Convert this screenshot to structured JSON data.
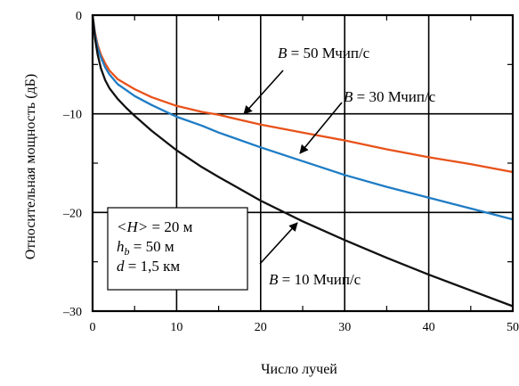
{
  "chart_data": {
    "type": "line",
    "xlabel": "Число лучей",
    "ylabel": "Относительная мощность (дБ)",
    "xlim": [
      0,
      50
    ],
    "ylim": [
      -30,
      0
    ],
    "x_ticks": [
      0,
      10,
      20,
      30,
      40,
      50
    ],
    "y_ticks": [
      0,
      -10,
      -20,
      -30
    ],
    "x_tick_labels": [
      "0",
      "10",
      "20",
      "30",
      "40",
      "50"
    ],
    "y_tick_labels": [
      "0",
      "–10",
      "–20",
      "–30"
    ],
    "grid": true,
    "series": [
      {
        "label_prefix": "B",
        "label_suffix": " = 50  Мчип/с",
        "color": "#e8521a",
        "x": [
          0,
          0.3,
          0.6,
          1,
          1.5,
          2,
          3,
          4,
          5,
          7,
          10,
          13,
          15,
          20,
          25,
          30,
          35,
          40,
          45,
          50
        ],
        "y": [
          0,
          -1.8,
          -3.0,
          -4.0,
          -4.9,
          -5.6,
          -6.5,
          -7.0,
          -7.5,
          -8.3,
          -9.2,
          -9.8,
          -10.1,
          -11.1,
          -11.9,
          -12.7,
          -13.6,
          -14.4,
          -15.1,
          -15.9
        ]
      },
      {
        "label_prefix": "B",
        "label_suffix": " = 30  Мчип/с",
        "color": "#1f7cc4",
        "x": [
          0,
          0.3,
          0.6,
          1,
          1.5,
          2,
          3,
          4,
          5,
          7,
          10,
          13,
          15,
          20,
          25,
          30,
          35,
          40,
          45,
          50
        ],
        "y": [
          0,
          -2.0,
          -3.3,
          -4.3,
          -5.3,
          -6.0,
          -7.0,
          -7.6,
          -8.2,
          -9.1,
          -10.3,
          -11.2,
          -11.9,
          -13.4,
          -14.8,
          -16.2,
          -17.4,
          -18.5,
          -19.6,
          -20.7
        ]
      },
      {
        "label_prefix": "B",
        "label_suffix": " = 10  Мчип/с",
        "color": "#111111",
        "x": [
          0,
          0.3,
          0.6,
          1,
          1.5,
          2,
          3,
          4,
          5,
          7,
          10,
          13,
          15,
          20,
          25,
          30,
          35,
          40,
          45,
          50
        ],
        "y": [
          0,
          -2.4,
          -4.0,
          -5.4,
          -6.6,
          -7.4,
          -8.5,
          -9.4,
          -10.2,
          -11.7,
          -13.7,
          -15.4,
          -16.4,
          -18.8,
          -20.9,
          -22.8,
          -24.6,
          -26.3,
          -27.9,
          -29.5
        ]
      }
    ],
    "legend_box": [
      {
        "pre": "<H>",
        "sub": "",
        "post": " = 20 м"
      },
      {
        "pre": "h",
        "sub": "b",
        "post": " = 50  м"
      },
      {
        "pre": "d",
        "sub": "",
        "post": " = 1,5 км"
      }
    ]
  }
}
